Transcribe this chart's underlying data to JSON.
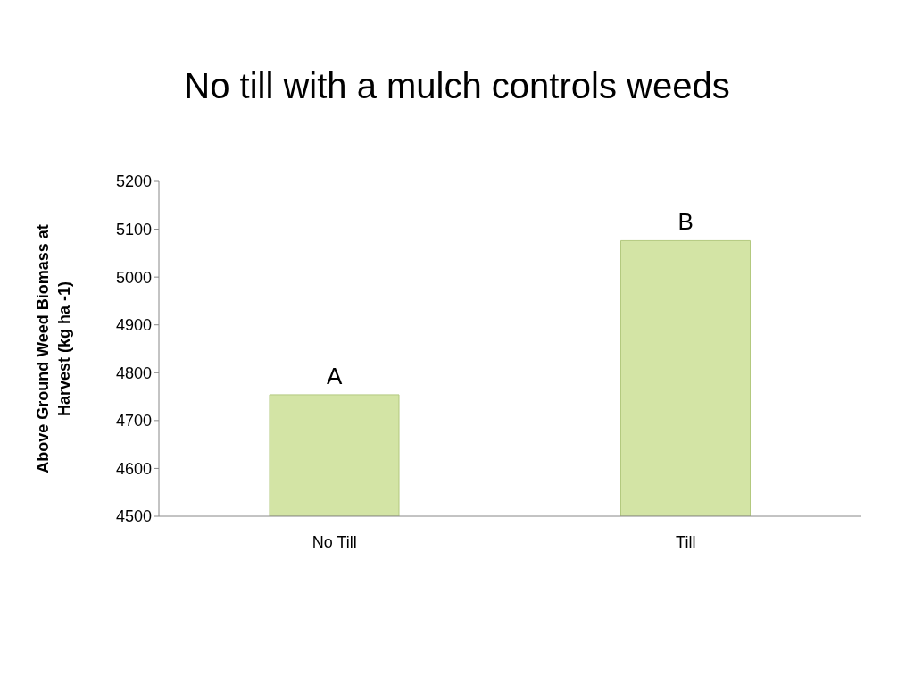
{
  "chart_data": {
    "type": "bar",
    "title": "No till with a mulch controls weeds",
    "ylabel": "Above Ground Weed Biomass at Harvest (kg ha -1)",
    "categories": [
      "No Till",
      "Till"
    ],
    "values": [
      4754,
      5076
    ],
    "color": "#d3e4a5",
    "ylim": [
      4500,
      5200
    ],
    "yticks": [
      4500,
      4600,
      4700,
      4800,
      4900,
      5000,
      5100,
      5200
    ],
    "grid": false,
    "legend": false,
    "annotations": [
      {
        "text": "A",
        "x": "No Till",
        "y": 4754
      },
      {
        "text": "B",
        "x": "Till",
        "y": 5076
      }
    ]
  }
}
